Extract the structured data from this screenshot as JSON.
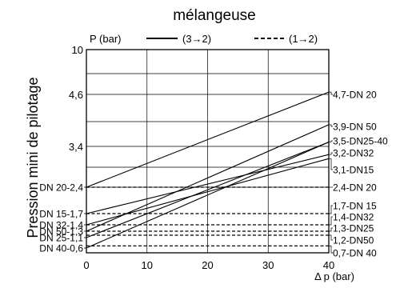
{
  "chart_data": {
    "type": "line",
    "title": "mélangeuse",
    "ylabel": "Pression mini de pilotage",
    "y_unit_label": "P (bar)",
    "xlabel": "Δ p (bar)",
    "xlim": [
      0,
      40
    ],
    "ylim": [
      0,
      10
    ],
    "grid": true,
    "x_ticks": [
      0,
      10,
      20,
      30,
      40
    ],
    "y_ticks": [
      {
        "value": 10,
        "label": "10"
      },
      {
        "value": 4.6,
        "label": "4,6"
      },
      {
        "value": 3.4,
        "label": "3,4"
      }
    ],
    "legend": [
      {
        "label": "(3→2)",
        "style": "solid"
      },
      {
        "label": "(1→2)",
        "style": "dashed"
      }
    ],
    "series": [
      {
        "style": "solid",
        "x": [
          0,
          40
        ],
        "y": [
          2.4,
          4.7
        ],
        "start_label": "DN 20-2,4",
        "end_label": "4,7-DN 20"
      },
      {
        "style": "solid",
        "x": [
          0,
          40
        ],
        "y": [
          1.7,
          3.2
        ],
        "start_label": "DN 15-1,7",
        "end_label": "3,2-DN32"
      },
      {
        "style": "solid",
        "x": [
          0,
          40
        ],
        "y": [
          1.4,
          3.1
        ],
        "start_label": "DN 32-1,4",
        "end_label": "3,1-DN15"
      },
      {
        "style": "solid",
        "x": [
          0,
          40
        ],
        "y": [
          1.3,
          3.9
        ],
        "start_label": "DN 50-1,3",
        "end_label": "3,9-DN 50"
      },
      {
        "style": "solid",
        "x": [
          0,
          40
        ],
        "y": [
          1.1,
          3.5
        ],
        "start_label": "DN 25-1,1",
        "end_label": "3,5-DN25-40"
      },
      {
        "style": "solid",
        "x": [
          0,
          40
        ],
        "y": [
          0.6,
          3.5
        ],
        "start_label": "DN 40-0,6",
        "end_label": ""
      },
      {
        "style": "dashed",
        "x": [
          0,
          40
        ],
        "y": [
          2.4,
          2.4
        ],
        "start_label": "",
        "end_label": "2,4-DN 20"
      },
      {
        "style": "dashed",
        "x": [
          0,
          40
        ],
        "y": [
          1.7,
          1.7
        ],
        "start_label": "",
        "end_label": "1,7-DN 15"
      },
      {
        "style": "dashed",
        "x": [
          0,
          40
        ],
        "y": [
          1.4,
          1.4
        ],
        "start_label": "",
        "end_label": "1,4-DN32"
      },
      {
        "style": "dashed",
        "x": [
          0,
          40
        ],
        "y": [
          1.3,
          1.3
        ],
        "start_label": "",
        "end_label": "1,3-DN25"
      },
      {
        "style": "dashed",
        "x": [
          0,
          40
        ],
        "y": [
          1.2,
          1.2
        ],
        "start_label": "",
        "end_label": "1,2-DN50"
      },
      {
        "style": "dashed",
        "x": [
          0,
          40
        ],
        "y": [
          0.7,
          0.7
        ],
        "start_label": "",
        "end_label": "0,7-DN 40"
      }
    ]
  }
}
